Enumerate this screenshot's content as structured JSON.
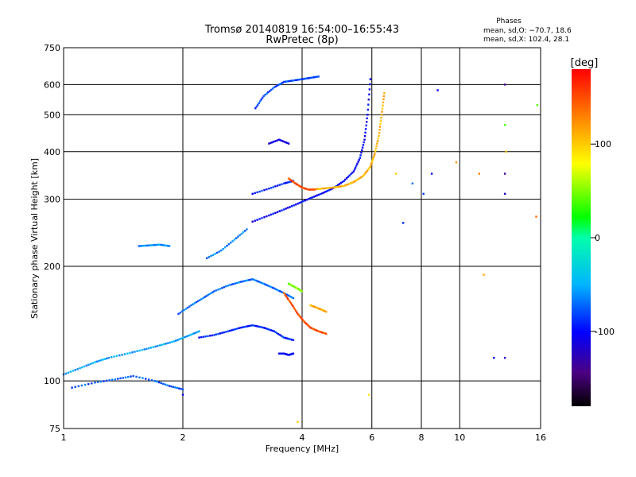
{
  "chart_data": {
    "type": "scatter",
    "title": "Tromsø 20140819 16:54:00–16:55:43",
    "subtitle": "RwPretec (8p)",
    "stats": {
      "heading": "Phases",
      "line1": "mean, sd,O: −70.7, 18.6",
      "line2": "mean, sd,X: 102.4, 28.1"
    },
    "xlabel": "Frequency [MHz]",
    "ylabel": "Stationary phase Virtual Height [km]",
    "x_scale": "log",
    "y_scale": "log",
    "xlim": [
      1,
      16
    ],
    "ylim": [
      75,
      750
    ],
    "x_ticks": [
      1,
      2,
      4,
      6,
      8,
      10,
      16
    ],
    "y_ticks": [
      75,
      100,
      200,
      300,
      400,
      500,
      600,
      750
    ],
    "x_grid": [
      2,
      4,
      6,
      8,
      10
    ],
    "y_grid": [
      100,
      200,
      300,
      400,
      500,
      600
    ],
    "grid": true,
    "colorbar": {
      "label": "[deg]",
      "range": [
        -180,
        180
      ],
      "ticks": [
        100,
        0,
        -100
      ]
    },
    "series": [
      {
        "traces": [
          {
            "mode": "O",
            "x": [
              1.0,
              1.1,
              1.2,
              1.3,
              1.45,
              1.6,
              1.75,
              1.9,
              2.05,
              2.2
            ],
            "y": [
              104,
              108,
              112,
              115,
              118,
              121,
              124,
              127,
              131,
              135
            ],
            "phase": -55
          },
          {
            "mode": "O",
            "x": [
              1.05,
              1.2,
              1.35,
              1.5,
              1.7,
              1.85,
              2.0
            ],
            "y": [
              96,
              99,
              101,
              103,
              100,
              97,
              95
            ],
            "phase": -75
          },
          {
            "mode": "O",
            "x": [
              1.55,
              1.65,
              1.75,
              1.85
            ],
            "y": [
              226,
              227,
              228,
              226
            ],
            "phase": -60
          },
          {
            "mode": "O",
            "x": [
              1.95,
              2.1,
              2.25,
              2.4,
              2.6,
              2.8,
              3.0,
              3.2,
              3.4,
              3.6,
              3.8
            ],
            "y": [
              150,
              158,
              165,
              172,
              178,
              182,
              185,
              180,
              175,
              170,
              165
            ],
            "phase": -70
          },
          {
            "mode": "O",
            "x": [
              2.2,
              2.4,
              2.6,
              2.8,
              3.0,
              3.2,
              3.4,
              3.6,
              3.8
            ],
            "y": [
              130,
              132,
              135,
              138,
              140,
              138,
              135,
              130,
              128
            ],
            "phase": -90
          },
          {
            "mode": "O",
            "x": [
              2.3,
              2.5,
              2.7,
              2.9
            ],
            "y": [
              210,
              220,
              235,
              250
            ],
            "phase": -65
          },
          {
            "mode": "O",
            "x": [
              3.0,
              3.3,
              3.6,
              3.9,
              4.2,
              4.5,
              4.8,
              5.1,
              5.4,
              5.6,
              5.75,
              5.85,
              5.95
            ],
            "y": [
              262,
              272,
              282,
              292,
              302,
              311,
              321,
              335,
              355,
              385,
              430,
              500,
              620
            ],
            "phase": -100
          },
          {
            "mode": "O",
            "x": [
              3.0,
              3.3,
              3.6,
              3.8
            ],
            "y": [
              310,
              320,
              330,
              335
            ],
            "phase": -90
          },
          {
            "mode": "O",
            "x": [
              3.5,
              3.6,
              3.7,
              3.8
            ],
            "y": [
              118,
              118,
              117,
              118
            ],
            "phase": -100
          },
          {
            "mode": "O",
            "x": [
              3.3,
              3.5,
              3.7
            ],
            "y": [
              420,
              430,
              420
            ],
            "phase": -110
          },
          {
            "mode": "O",
            "x": [
              3.05,
              3.2,
              3.4,
              3.6,
              3.8,
              4.0,
              4.2,
              4.4
            ],
            "y": [
              520,
              560,
              590,
              610,
              615,
              620,
              625,
              630
            ],
            "phase": -80
          },
          {
            "mode": "X",
            "x": [
              4.2,
              4.5,
              4.8,
              5.1,
              5.4,
              5.7,
              5.95,
              6.1,
              6.25,
              6.35,
              6.45
            ],
            "y": [
              318,
              320,
              322,
              325,
              333,
              345,
              365,
              395,
              440,
              500,
              570
            ],
            "phase": 110
          },
          {
            "mode": "X",
            "x": [
              3.7,
              3.85,
              4.0,
              4.15,
              4.3
            ],
            "y": [
              340,
              330,
              322,
              318,
              318
            ],
            "phase": 150
          },
          {
            "mode": "X",
            "x": [
              3.6,
              3.75,
              3.9,
              4.05,
              4.2,
              4.4,
              4.6
            ],
            "y": [
              170,
              160,
              150,
              143,
              138,
              135,
              133
            ],
            "phase": 150
          },
          {
            "mode": "X",
            "x": [
              3.7,
              3.85,
              4.0
            ],
            "y": [
              180,
              176,
              172
            ],
            "phase": 50
          },
          {
            "mode": "X",
            "x": [
              4.2,
              4.4,
              4.6
            ],
            "y": [
              158,
              155,
              152
            ],
            "phase": 115
          }
        ],
        "scatter": [
          {
            "x": 6.9,
            "y": 350,
            "phase": 100
          },
          {
            "x": 7.2,
            "y": 260,
            "phase": -90
          },
          {
            "x": 7.6,
            "y": 330,
            "phase": -70
          },
          {
            "x": 8.1,
            "y": 310,
            "phase": -85
          },
          {
            "x": 8.5,
            "y": 350,
            "phase": -95
          },
          {
            "x": 8.8,
            "y": 580,
            "phase": -100
          },
          {
            "x": 9.8,
            "y": 375,
            "phase": 120
          },
          {
            "x": 11.2,
            "y": 350,
            "phase": 130
          },
          {
            "x": 11.5,
            "y": 190,
            "phase": 115
          },
          {
            "x": 12.2,
            "y": 115,
            "phase": -110
          },
          {
            "x": 13.0,
            "y": 600,
            "phase": -140
          },
          {
            "x": 13.0,
            "y": 350,
            "phase": -140
          },
          {
            "x": 13.0,
            "y": 310,
            "phase": -125
          },
          {
            "x": 13.0,
            "y": 115,
            "phase": -120
          },
          {
            "x": 13.0,
            "y": 470,
            "phase": 35
          },
          {
            "x": 13.1,
            "y": 400,
            "phase": 110
          },
          {
            "x": 15.6,
            "y": 270,
            "phase": 140
          },
          {
            "x": 15.7,
            "y": 530,
            "phase": 40
          },
          {
            "x": 5.9,
            "y": 92,
            "phase": 90
          },
          {
            "x": 3.9,
            "y": 78,
            "phase": 100
          },
          {
            "x": 2.0,
            "y": 92,
            "phase": -100
          }
        ]
      }
    ]
  }
}
